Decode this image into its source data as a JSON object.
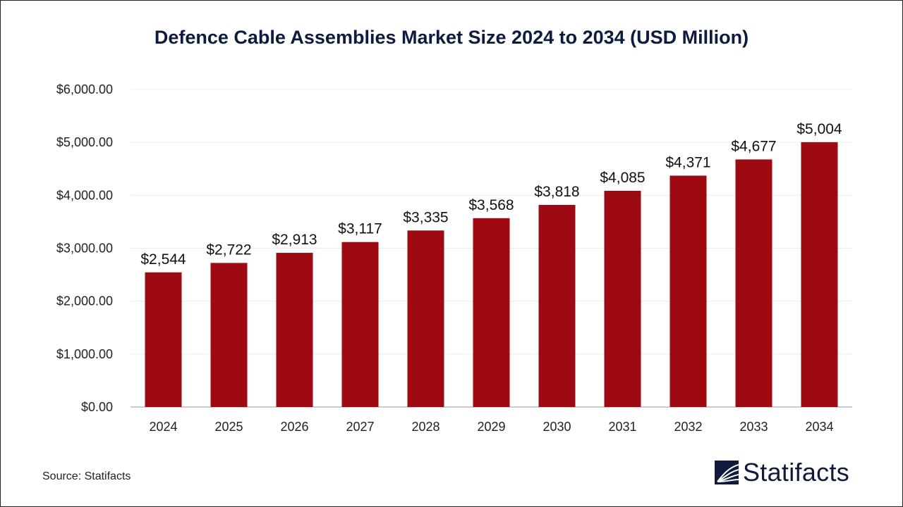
{
  "chart_data": {
    "type": "bar",
    "title": "Defence Cable Assemblies Market Size 2024 to 2034 (USD Million)",
    "categories": [
      "2024",
      "2025",
      "2026",
      "2027",
      "2028",
      "2029",
      "2030",
      "2031",
      "2032",
      "2033",
      "2034"
    ],
    "values": [
      2544,
      2722,
      2913,
      3117,
      3335,
      3568,
      3818,
      4085,
      4371,
      4677,
      5004
    ],
    "data_labels": [
      "$2,544",
      "$2,722",
      "$2,913",
      "$3,117",
      "$3,335",
      "$3,568",
      "$3,818",
      "$4,085",
      "$4,371",
      "$4,677",
      "$5,004"
    ],
    "ylim": [
      0,
      6000
    ],
    "yticks": [
      0,
      1000,
      2000,
      3000,
      4000,
      5000,
      6000
    ],
    "ytick_labels": [
      "$0.00",
      "$1,000.00",
      "$2,000.00",
      "$3,000.00",
      "$4,000.00",
      "$5,000.00",
      "$6,000.00"
    ],
    "xlabel": "",
    "ylabel": "",
    "grid": true,
    "bar_color": "#9e0a12"
  },
  "source": "Source: Statifacts",
  "logo": {
    "text": "Statifacts",
    "color": "#0f1a3c"
  }
}
